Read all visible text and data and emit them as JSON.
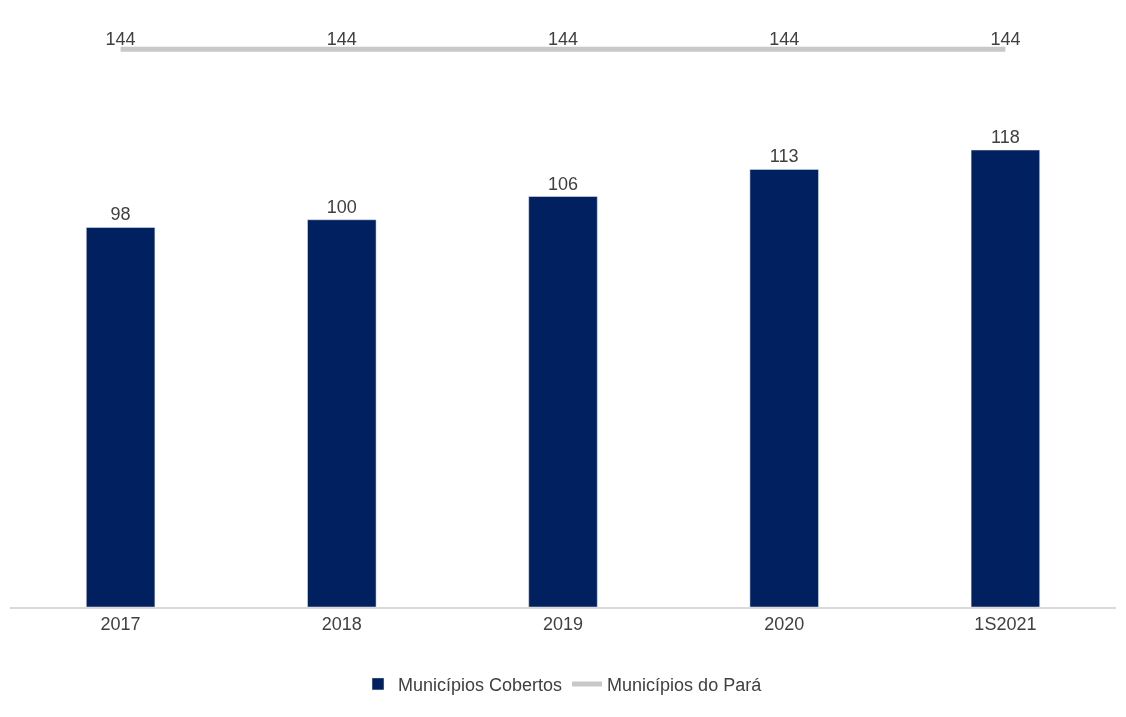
{
  "chart_data": {
    "type": "bar",
    "categories": [
      "2017",
      "2018",
      "2019",
      "2020",
      "1S2021"
    ],
    "series": [
      {
        "name": "Municípios Cobertos",
        "color": "#002060",
        "values": [
          98,
          100,
          106,
          113,
          118
        ]
      },
      {
        "name": "Municípios do Pará",
        "type": "line",
        "color": "#c8c8c8",
        "values": [
          144,
          144,
          144,
          144,
          144
        ]
      }
    ],
    "data_labels": true,
    "legend": "bottom",
    "marker": "none",
    "tick_labels": "x"
  }
}
